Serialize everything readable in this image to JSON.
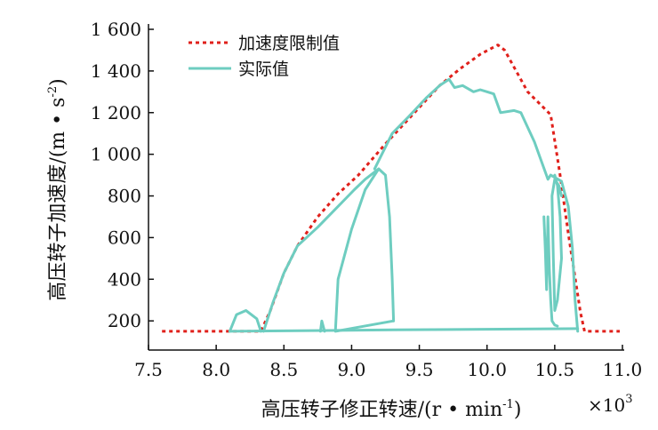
{
  "chart_data": {
    "type": "line",
    "title": "",
    "xlabel": "高压转子修正转速/(r • min",
    "xlabel_sup": "-1",
    "xlabel_end": ")",
    "ylabel": "高压转子加速度/(m • s",
    "ylabel_sup": "-2",
    "ylabel_end": ")",
    "x_multiplier": "×10",
    "x_multiplier_sup": "3",
    "xlim": [
      7.5,
      11.0
    ],
    "ylim": [
      60,
      1600
    ],
    "x_ticks": [
      7.5,
      8.0,
      8.5,
      9.0,
      9.5,
      10.0,
      10.5,
      11.0
    ],
    "x_tick_labels": [
      "7.5",
      "8.0",
      "8.5",
      "9.0",
      "9.5",
      "10.0",
      "10.5",
      "11.0"
    ],
    "y_ticks": [
      200,
      400,
      600,
      800,
      1000,
      1200,
      1400,
      1600
    ],
    "y_tick_labels": [
      "200",
      "400",
      "600",
      "800",
      "1 000",
      "1 200",
      "1 400",
      "1 600"
    ],
    "legend_position": "top-left",
    "grid": false,
    "series": [
      {
        "name": "加速度限制值",
        "style": "dotted",
        "color": "#e0201b",
        "x": [
          7.6,
          8.33,
          8.4,
          8.45,
          8.5,
          8.6,
          8.75,
          8.9,
          9.05,
          9.25,
          9.45,
          9.65,
          9.8,
          9.95,
          10.08,
          10.13,
          10.3,
          10.47,
          10.54,
          10.6,
          10.69,
          10.72,
          10.98
        ],
        "y": [
          150,
          150,
          250,
          340,
          430,
          560,
          700,
          810,
          900,
          1050,
          1190,
          1330,
          1410,
          1480,
          1525,
          1500,
          1300,
          1190,
          900,
          620,
          240,
          150,
          150
        ]
      },
      {
        "name": "实际值",
        "style": "solid",
        "color": "#6ecdc0",
        "segments": [
          {
            "x": [
              8.1,
              8.15,
              8.22,
              8.3,
              8.33
            ],
            "y": [
              150,
              230,
              250,
              210,
              150
            ]
          },
          {
            "x": [
              8.35,
              8.42,
              8.5,
              8.6,
              8.75,
              8.9,
              9.02,
              9.1,
              9.2,
              9.25,
              9.28,
              9.3,
              9.31
            ],
            "y": [
              150,
              290,
              430,
              560,
              650,
              750,
              830,
              880,
              930,
              900,
              700,
              400,
              200
            ]
          },
          {
            "x": [
              9.31,
              8.88,
              8.9,
              9.0,
              9.1,
              9.17,
              9.2
            ],
            "y": [
              200,
              150,
              400,
              640,
              830,
              900,
              930
            ]
          },
          {
            "x": [
              8.77,
              8.78,
              8.8
            ],
            "y": [
              150,
              200,
              150
            ]
          },
          {
            "x": [
              9.17,
              9.3,
              9.42,
              9.55,
              9.65,
              9.72,
              9.76,
              9.82,
              9.9,
              9.95,
              10.0,
              10.05,
              10.1,
              10.2,
              10.25,
              10.3,
              10.35,
              10.4,
              10.45,
              10.47
            ],
            "y": [
              930,
              1100,
              1180,
              1270,
              1330,
              1360,
              1320,
              1330,
              1300,
              1310,
              1300,
              1290,
              1200,
              1210,
              1200,
              1130,
              1060,
              970,
              880,
              900
            ]
          },
          {
            "x": [
              10.47,
              10.55,
              10.6,
              10.63,
              10.65,
              10.67
            ],
            "y": [
              900,
              870,
              750,
              550,
              300,
              150
            ]
          },
          {
            "x": [
              10.42,
              10.43,
              10.44,
              10.45,
              10.46,
              10.47,
              10.48,
              10.5,
              10.52
            ],
            "y": [
              700,
              550,
              350,
              700,
              450,
              300,
              200,
              180,
              175
            ]
          },
          {
            "x": [
              10.5,
              10.52,
              10.54,
              10.55,
              10.52,
              10.5,
              10.49,
              10.48,
              10.5,
              10.53,
              10.55
            ],
            "y": [
              900,
              850,
              700,
              500,
              300,
              250,
              500,
              800,
              880,
              850,
              800
            ]
          },
          {
            "x": [
              8.1,
              9.31,
              10.67
            ],
            "y": [
              150,
              157,
              163
            ]
          }
        ]
      }
    ]
  }
}
